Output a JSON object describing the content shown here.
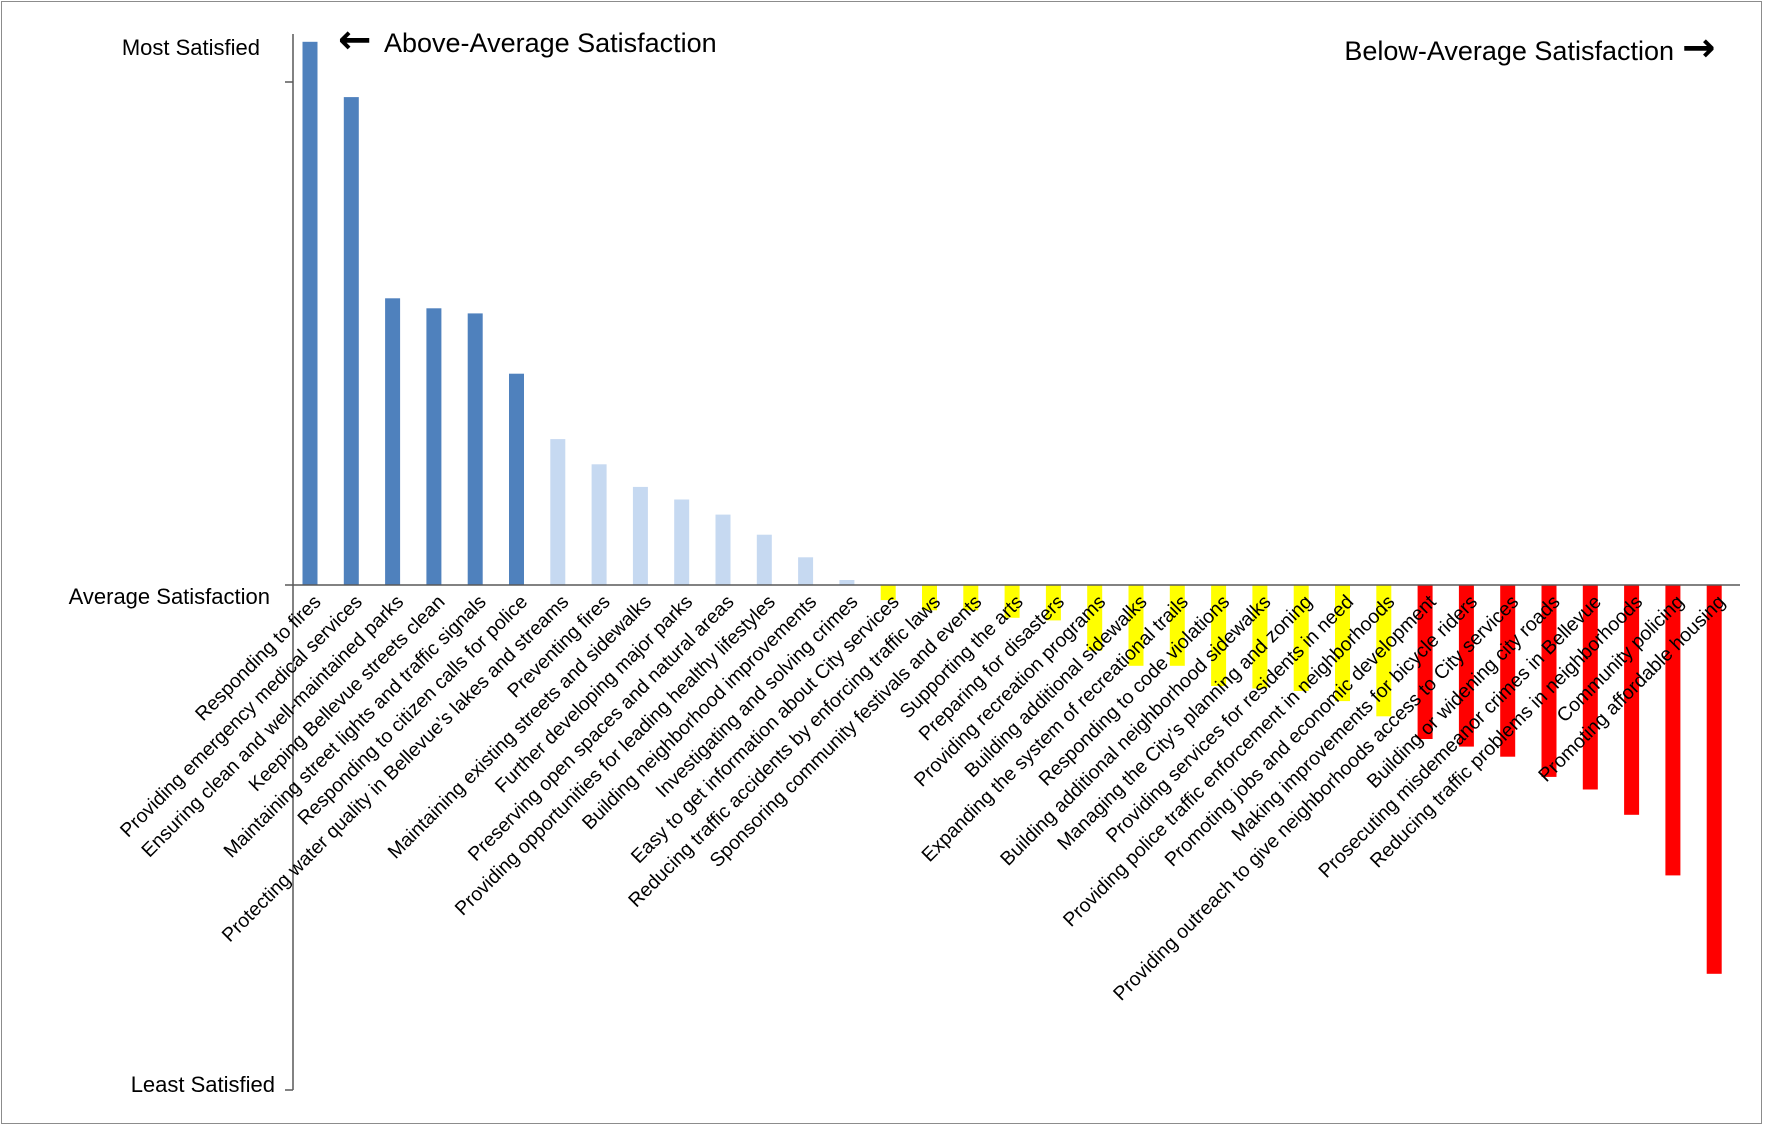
{
  "chart_data": {
    "type": "bar",
    "y_labels": {
      "top": "Most Satisfied",
      "middle": "Average Satisfaction",
      "bottom": "Least Satisfied"
    },
    "annotations": {
      "left": "Above-Average Satisfaction",
      "right": "Below-Average Satisfaction"
    },
    "ylim": [
      -100,
      100
    ],
    "grid": false,
    "legend": "none",
    "colors": {
      "strong_above": "#4f81bd",
      "above": "#c6d9f1",
      "below": "#ffff00",
      "strong_below": "#ff0000"
    },
    "categories": [
      "Responding to fires",
      "Providing emergency medical services",
      "Ensuring clean and well-maintained parks",
      "Keeping Bellevue streets clean",
      "Maintaining street lights and traffic signals",
      "Responding to citizen calls for police",
      "Protecting water quality in Bellevue’s lakes and streams",
      "Preventing fires",
      "Maintaining existing streets and sidewalks",
      "Further developing major parks",
      "Preserving open spaces and natural areas",
      "Providing opportunities for leading healthy lifestyles",
      "Building neighborhood improvements",
      "Investigating and solving crimes",
      "Easy to get information about City services",
      "Reducing traffic accidents by enforcing traffic laws",
      "Sponsoring community festivals and events",
      "Supporting the arts",
      "Preparing for disasters",
      "Providing recreation programs",
      "Building additional sidewalks",
      "Expanding the system of recreational trails",
      "Responding to code violations",
      "Building additional neighborhood sidewalks",
      "Managing the City’s planning and zoning",
      "Providing services for residents in need",
      "Providing police traffic enforcement in neighborhoods",
      "Promoting jobs and economic development",
      "Making improvements for bicycle riders",
      "Providing outreach to give neighborhoods access to City services",
      "Building or widening city roads",
      "Prosecuting misdemeanor crimes in Bellevue",
      "Reducing traffic problems in neighborhoods",
      "Community policing",
      "Promoting affordable housing"
    ],
    "values": [
      108,
      97,
      57,
      55,
      54,
      42,
      29,
      24,
      19.5,
      17,
      14,
      10,
      5.5,
      1,
      -3,
      -5,
      -5,
      -6.5,
      -7,
      -13,
      -16,
      -16,
      -20,
      -20.5,
      -21,
      -23,
      -26,
      -30.5,
      -32,
      -34,
      -38,
      -40.5,
      -45.5,
      -57.5,
      -77
    ],
    "value_groups": [
      "strong_above",
      "strong_above",
      "strong_above",
      "strong_above",
      "strong_above",
      "strong_above",
      "above",
      "above",
      "above",
      "above",
      "above",
      "above",
      "above",
      "above",
      "below",
      "below",
      "below",
      "below",
      "below",
      "below",
      "below",
      "below",
      "below",
      "below",
      "below",
      "below",
      "below",
      "strong_below",
      "strong_below",
      "strong_below",
      "strong_below",
      "strong_below",
      "strong_below",
      "strong_below",
      "strong_below"
    ]
  }
}
